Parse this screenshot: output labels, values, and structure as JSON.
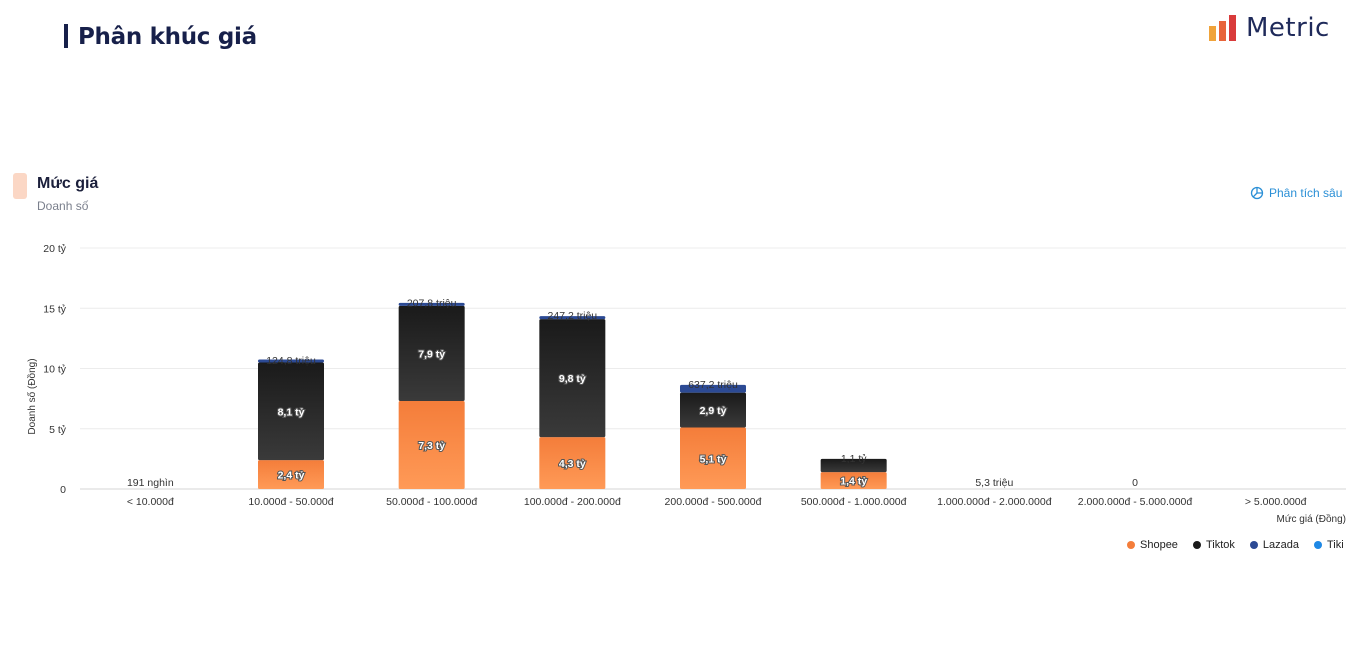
{
  "header": {
    "title": "Phân khúc giá",
    "logo_text": "Metric",
    "logo_icon": "bar-chart-logo-icon",
    "logo_colors": [
      "#f0a33a",
      "#e8643a",
      "#d93b3b"
    ]
  },
  "section": {
    "title": "Mức giá",
    "subtitle": "Doanh số",
    "accent_color": "#fbd7c5",
    "deep_link_label": "Phân tích sâu",
    "deep_link_icon": "pie-chart-icon"
  },
  "chart_data": {
    "type": "bar",
    "stacked": true,
    "title": "",
    "xlabel": "Mức giá (Đồng)",
    "ylabel": "Doanh số (Đồng)",
    "ylim": [
      0,
      20
    ],
    "unit": "tỷ",
    "yticks": [
      0,
      5,
      10,
      15,
      20
    ],
    "ytick_labels": [
      "0",
      "5 tỷ",
      "10 tỷ",
      "15 tỷ",
      "20 tỷ"
    ],
    "grid": true,
    "categories": [
      "< 10.000đ",
      "10.000đ - 50.000đ",
      "50.000đ - 100.000đ",
      "100.000đ - 200.000đ",
      "200.000đ - 500.000đ",
      "500.000đ - 1.000.000đ",
      "1.000.000đ - 2.000.000đ",
      "2.000.000đ - 5.000.000đ",
      "> 5.000.000đ"
    ],
    "series": [
      {
        "name": "Shopee",
        "color": "#f47d3a",
        "values": [
          0,
          2.4,
          7.3,
          4.3,
          5.1,
          1.4,
          0,
          0,
          0
        ],
        "labels": [
          "",
          "2,4 tỷ",
          "7,3 tỷ",
          "4,3 tỷ",
          "5,1 tỷ",
          "1,4 tỷ",
          "",
          "",
          ""
        ]
      },
      {
        "name": "Tiktok",
        "color": "#1a1a1a",
        "values": [
          0,
          8.1,
          7.9,
          9.8,
          2.9,
          1.1,
          0,
          0,
          0
        ],
        "labels": [
          "",
          "8,1 tỷ",
          "7,9 tỷ",
          "9,8 tỷ",
          "2,9 tỷ",
          "1,1 tỷ",
          "",
          "",
          ""
        ]
      },
      {
        "name": "Lazada",
        "color": "#2c4a94",
        "values": [
          0,
          0.125,
          0.208,
          0.247,
          0.637,
          0,
          0,
          0,
          0
        ],
        "labels": [
          "",
          "124,8 triệu",
          "207,8 triệu",
          "247,2 triệu",
          "637,2 triệu",
          "",
          "",
          "",
          ""
        ]
      },
      {
        "name": "Tiki",
        "color": "#1e88e5",
        "values": [
          0,
          0,
          0,
          0,
          0,
          0,
          0,
          0,
          0
        ],
        "labels": [
          "",
          "",
          "",
          "",
          "",
          "",
          "",
          "",
          ""
        ]
      }
    ],
    "total_labels": [
      "191 nghìn",
      "",
      "",
      "",
      "",
      "",
      "5,3 triệu",
      "0",
      ""
    ],
    "legend": {
      "position": "bottom-right"
    }
  }
}
